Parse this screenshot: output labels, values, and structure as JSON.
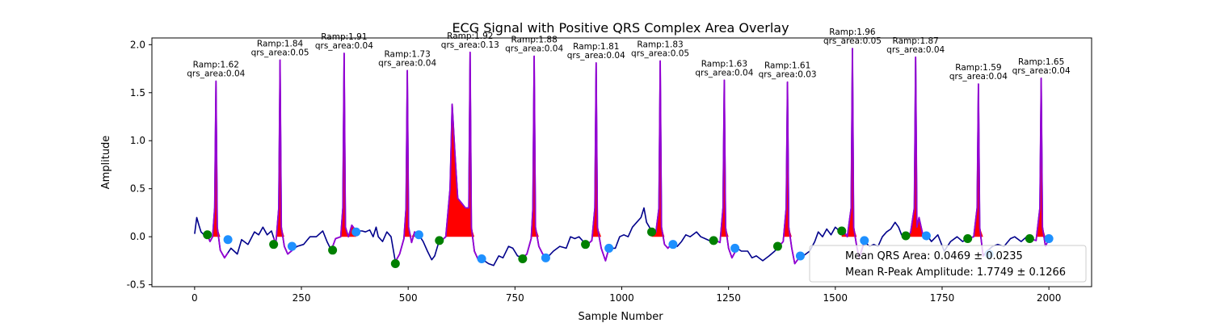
{
  "chart_data": {
    "type": "line",
    "title": "ECG Signal with Positive QRS Complex Area Overlay",
    "xlabel": "Sample Number",
    "ylabel": "Amplitude",
    "xlim": [
      -100,
      2100
    ],
    "ylim": [
      -0.52,
      2.07
    ],
    "xticks": [
      0,
      250,
      500,
      750,
      1000,
      1250,
      1500,
      1750,
      2000
    ],
    "yticks": [
      -0.5,
      0.0,
      0.5,
      1.0,
      1.5,
      2.0
    ],
    "grid": false,
    "legend_position": "lower-right",
    "colors": {
      "signal": "#00008b",
      "qrs_segment": "#9400d3",
      "qrs_area": "#ff0000",
      "onset_marker": "#008000",
      "offset_marker": "#1e90ff"
    },
    "r_peaks": [
      {
        "x": 50,
        "amp": 1.62,
        "qrs_area": 0.04,
        "label_r": "Ramp:1.62",
        "label_q": "qrs_area:0.04"
      },
      {
        "x": 200,
        "amp": 1.84,
        "qrs_area": 0.05,
        "label_r": "Ramp:1.84",
        "label_q": "qrs_area:0.05"
      },
      {
        "x": 350,
        "amp": 1.91,
        "qrs_area": 0.04,
        "label_r": "Ramp:1.91",
        "label_q": "qrs_area:0.04"
      },
      {
        "x": 498,
        "amp": 1.73,
        "qrs_area": 0.04,
        "label_r": "Ramp:1.73",
        "label_q": "qrs_area:0.04"
      },
      {
        "x": 645,
        "amp": 1.92,
        "qrs_area": 0.13,
        "label_r": "Ramp:1.92",
        "label_q": "qrs_area:0.13"
      },
      {
        "x": 795,
        "amp": 1.88,
        "qrs_area": 0.04,
        "label_r": "Ramp:1.88",
        "label_q": "qrs_area:0.04"
      },
      {
        "x": 940,
        "amp": 1.81,
        "qrs_area": 0.04,
        "label_r": "Ramp:1.81",
        "label_q": "qrs_area:0.04"
      },
      {
        "x": 1090,
        "amp": 1.83,
        "qrs_area": 0.05,
        "label_r": "Ramp:1.83",
        "label_q": "qrs_area:0.05"
      },
      {
        "x": 1240,
        "amp": 1.63,
        "qrs_area": 0.04,
        "label_r": "Ramp:1.63",
        "label_q": "qrs_area:0.04"
      },
      {
        "x": 1388,
        "amp": 1.61,
        "qrs_area": 0.03,
        "label_r": "Ramp:1.61",
        "label_q": "qrs_area:0.03"
      },
      {
        "x": 1540,
        "amp": 1.96,
        "qrs_area": 0.05,
        "label_r": "Ramp:1.96",
        "label_q": "qrs_area:0.05"
      },
      {
        "x": 1688,
        "amp": 1.87,
        "qrs_area": 0.04,
        "label_r": "Ramp:1.87",
        "label_q": "qrs_area:0.04"
      },
      {
        "x": 1835,
        "amp": 1.59,
        "qrs_area": 0.04,
        "label_r": "Ramp:1.59",
        "label_q": "qrs_area:0.04"
      },
      {
        "x": 1982,
        "amp": 1.65,
        "qrs_area": 0.04,
        "label_r": "Ramp:1.65",
        "label_q": "qrs_area:0.04"
      }
    ],
    "onset_points": [
      {
        "x": 30,
        "y": 0.02
      },
      {
        "x": 185,
        "y": -0.08
      },
      {
        "x": 323,
        "y": -0.14
      },
      {
        "x": 470,
        "y": -0.28
      },
      {
        "x": 573,
        "y": -0.04
      },
      {
        "x": 768,
        "y": -0.23
      },
      {
        "x": 915,
        "y": -0.08
      },
      {
        "x": 1070,
        "y": 0.05
      },
      {
        "x": 1215,
        "y": -0.04
      },
      {
        "x": 1365,
        "y": -0.1
      },
      {
        "x": 1515,
        "y": 0.06
      },
      {
        "x": 1665,
        "y": 0.01
      },
      {
        "x": 1810,
        "y": -0.02
      },
      {
        "x": 1955,
        "y": -0.02
      }
    ],
    "offset_points": [
      {
        "x": 78,
        "y": -0.03
      },
      {
        "x": 228,
        "y": -0.1
      },
      {
        "x": 378,
        "y": 0.05
      },
      {
        "x": 525,
        "y": 0.02
      },
      {
        "x": 672,
        "y": -0.23
      },
      {
        "x": 822,
        "y": -0.22
      },
      {
        "x": 970,
        "y": -0.12
      },
      {
        "x": 1120,
        "y": -0.08
      },
      {
        "x": 1265,
        "y": -0.12
      },
      {
        "x": 1418,
        "y": -0.2
      },
      {
        "x": 1568,
        "y": -0.04
      },
      {
        "x": 1713,
        "y": 0.01
      },
      {
        "x": 1860,
        "y": -0.18
      },
      {
        "x": 2000,
        "y": -0.02
      }
    ],
    "baseline": [
      [
        0,
        0.03
      ],
      [
        5,
        0.2
      ],
      [
        10,
        0.12
      ],
      [
        15,
        0.05
      ],
      [
        22,
        0.02
      ],
      [
        30,
        0.02
      ],
      [
        36,
        -0.05
      ],
      [
        42,
        0.0
      ],
      [
        60,
        -0.14
      ],
      [
        70,
        -0.22
      ],
      [
        85,
        -0.12
      ],
      [
        100,
        -0.18
      ],
      [
        110,
        -0.03
      ],
      [
        125,
        -0.08
      ],
      [
        140,
        0.05
      ],
      [
        150,
        0.02
      ],
      [
        160,
        0.1
      ],
      [
        170,
        0.02
      ],
      [
        180,
        0.06
      ],
      [
        190,
        -0.08
      ],
      [
        210,
        -0.1
      ],
      [
        218,
        -0.18
      ],
      [
        240,
        -0.1
      ],
      [
        255,
        -0.08
      ],
      [
        270,
        0.0
      ],
      [
        285,
        0.0
      ],
      [
        300,
        0.06
      ],
      [
        310,
        -0.05
      ],
      [
        320,
        -0.14
      ],
      [
        330,
        -0.02
      ],
      [
        342,
        0.0
      ],
      [
        360,
        0.0
      ],
      [
        368,
        0.12
      ],
      [
        378,
        0.06
      ],
      [
        392,
        0.06
      ],
      [
        400,
        0.05
      ],
      [
        410,
        0.07
      ],
      [
        418,
        0.0
      ],
      [
        425,
        0.1
      ],
      [
        430,
        0.0
      ],
      [
        440,
        -0.05
      ],
      [
        450,
        0.05
      ],
      [
        460,
        0.0
      ],
      [
        470,
        -0.26
      ],
      [
        480,
        -0.18
      ],
      [
        490,
        -0.02
      ],
      [
        508,
        -0.06
      ],
      [
        515,
        0.05
      ],
      [
        525,
        0.02
      ],
      [
        535,
        -0.05
      ],
      [
        545,
        -0.15
      ],
      [
        555,
        -0.24
      ],
      [
        562,
        -0.2
      ],
      [
        570,
        -0.08
      ],
      [
        578,
        -0.04
      ],
      [
        588,
        0.0
      ],
      [
        598,
        0.5
      ],
      [
        603,
        1.38
      ],
      [
        609,
        0.9
      ],
      [
        616,
        0.4
      ],
      [
        625,
        0.35
      ],
      [
        634,
        0.3
      ],
      [
        655,
        -0.15
      ],
      [
        665,
        -0.25
      ],
      [
        675,
        -0.24
      ],
      [
        688,
        -0.28
      ],
      [
        700,
        -0.3
      ],
      [
        712,
        -0.2
      ],
      [
        722,
        -0.22
      ],
      [
        735,
        -0.1
      ],
      [
        745,
        -0.12
      ],
      [
        756,
        -0.2
      ],
      [
        768,
        -0.22
      ],
      [
        778,
        -0.18
      ],
      [
        788,
        -0.02
      ],
      [
        806,
        -0.1
      ],
      [
        815,
        -0.18
      ],
      [
        825,
        -0.22
      ],
      [
        840,
        -0.15
      ],
      [
        855,
        -0.1
      ],
      [
        870,
        -0.12
      ],
      [
        880,
        0.0
      ],
      [
        890,
        -0.02
      ],
      [
        900,
        0.0
      ],
      [
        910,
        -0.05
      ],
      [
        920,
        -0.08
      ],
      [
        930,
        -0.04
      ],
      [
        952,
        -0.12
      ],
      [
        962,
        -0.25
      ],
      [
        970,
        -0.12
      ],
      [
        985,
        -0.12
      ],
      [
        995,
        0.0
      ],
      [
        1005,
        0.02
      ],
      [
        1015,
        0.0
      ],
      [
        1025,
        0.1
      ],
      [
        1035,
        0.15
      ],
      [
        1045,
        0.2
      ],
      [
        1052,
        0.3
      ],
      [
        1058,
        0.15
      ],
      [
        1070,
        0.06
      ],
      [
        1080,
        0.05
      ],
      [
        1100,
        -0.08
      ],
      [
        1108,
        -0.12
      ],
      [
        1120,
        -0.06
      ],
      [
        1130,
        -0.1
      ],
      [
        1140,
        -0.05
      ],
      [
        1150,
        0.02
      ],
      [
        1160,
        0.0
      ],
      [
        1175,
        0.05
      ],
      [
        1185,
        0.0
      ],
      [
        1195,
        -0.02
      ],
      [
        1210,
        -0.05
      ],
      [
        1220,
        -0.04
      ],
      [
        1230,
        -0.06
      ],
      [
        1250,
        -0.12
      ],
      [
        1258,
        -0.22
      ],
      [
        1270,
        -0.12
      ],
      [
        1280,
        -0.15
      ],
      [
        1295,
        -0.15
      ],
      [
        1305,
        -0.22
      ],
      [
        1315,
        -0.2
      ],
      [
        1330,
        -0.25
      ],
      [
        1345,
        -0.2
      ],
      [
        1358,
        -0.15
      ],
      [
        1368,
        -0.1
      ],
      [
        1378,
        -0.05
      ],
      [
        1398,
        -0.12
      ],
      [
        1405,
        -0.28
      ],
      [
        1415,
        -0.22
      ],
      [
        1425,
        -0.2
      ],
      [
        1440,
        -0.15
      ],
      [
        1452,
        -0.05
      ],
      [
        1460,
        0.05
      ],
      [
        1470,
        0.0
      ],
      [
        1480,
        0.08
      ],
      [
        1490,
        0.02
      ],
      [
        1500,
        0.1
      ],
      [
        1512,
        0.05
      ],
      [
        1520,
        0.06
      ],
      [
        1528,
        0.0
      ],
      [
        1550,
        -0.1
      ],
      [
        1556,
        -0.22
      ],
      [
        1568,
        -0.05
      ],
      [
        1580,
        -0.1
      ],
      [
        1590,
        -0.08
      ],
      [
        1600,
        -0.1
      ],
      [
        1610,
        0.0
      ],
      [
        1620,
        0.05
      ],
      [
        1630,
        0.08
      ],
      [
        1640,
        0.15
      ],
      [
        1648,
        0.1
      ],
      [
        1655,
        0.02
      ],
      [
        1665,
        0.01
      ],
      [
        1676,
        0.04
      ],
      [
        1696,
        0.2
      ],
      [
        1706,
        0.0
      ],
      [
        1714,
        0.02
      ],
      [
        1725,
        -0.05
      ],
      [
        1740,
        0.02
      ],
      [
        1755,
        -0.15
      ],
      [
        1770,
        -0.05
      ],
      [
        1785,
        0.0
      ],
      [
        1798,
        -0.05
      ],
      [
        1810,
        -0.02
      ],
      [
        1824,
        0.0
      ],
      [
        1846,
        -0.2
      ],
      [
        1855,
        -0.15
      ],
      [
        1868,
        -0.1
      ],
      [
        1880,
        -0.08
      ],
      [
        1895,
        -0.1
      ],
      [
        1910,
        -0.02
      ],
      [
        1920,
        0.0
      ],
      [
        1935,
        -0.05
      ],
      [
        1948,
        0.0
      ],
      [
        1955,
        -0.02
      ],
      [
        1970,
        -0.04
      ],
      [
        1992,
        -0.1
      ],
      [
        2000,
        -0.02
      ]
    ],
    "legend": [
      "Mean QRS Area: 0.0469 ± 0.0235",
      "Mean R-Peak Amplitude: 1.7749 ± 0.1266"
    ]
  }
}
